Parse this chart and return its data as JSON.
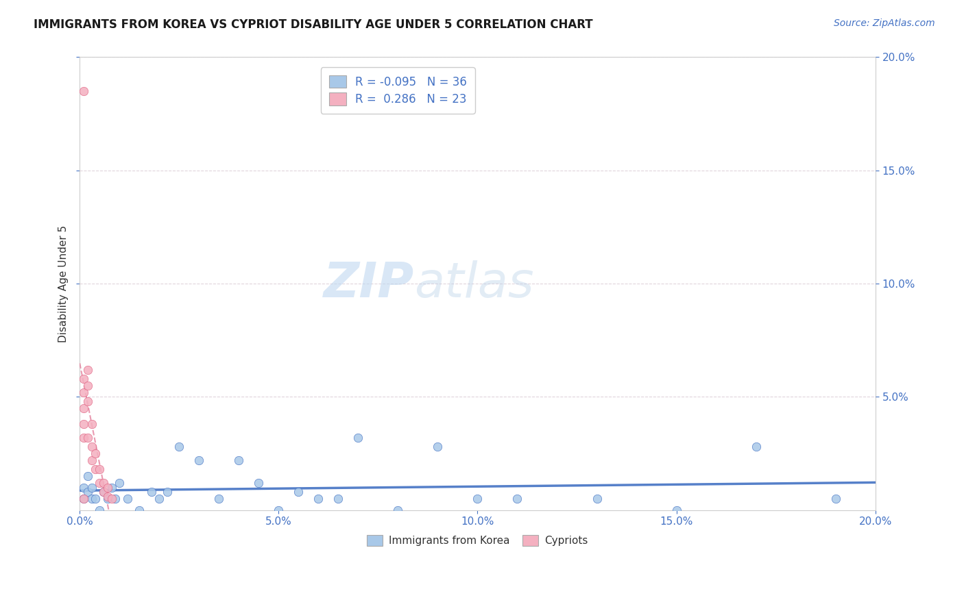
{
  "title": "IMMIGRANTS FROM KOREA VS CYPRIOT DISABILITY AGE UNDER 5 CORRELATION CHART",
  "source": "Source: ZipAtlas.com",
  "ylabel_label": "Disability Age Under 5",
  "legend_label1": "Immigrants from Korea",
  "legend_label2": "Cypriots",
  "r1": -0.095,
  "n1": 36,
  "r2": 0.286,
  "n2": 23,
  "color_korea": "#a8c8e8",
  "color_cypriot": "#f4b0c0",
  "color_korea_dark": "#4472c4",
  "color_cypriot_dark": "#e06080",
  "trendline_korea": "#4472c4",
  "trendline_cypriot": "#e07090",
  "xlim": [
    0.0,
    0.2
  ],
  "ylim": [
    0.0,
    0.2
  ],
  "xticks": [
    0.0,
    0.05,
    0.1,
    0.15,
    0.2
  ],
  "yticks": [
    0.05,
    0.1,
    0.15,
    0.2
  ],
  "grid_color": "#ddd0d8",
  "watermark_zip": "ZIP",
  "watermark_atlas": "atlas",
  "korea_x": [
    0.001,
    0.001,
    0.002,
    0.002,
    0.003,
    0.003,
    0.004,
    0.005,
    0.006,
    0.007,
    0.008,
    0.009,
    0.01,
    0.012,
    0.015,
    0.018,
    0.02,
    0.022,
    0.025,
    0.03,
    0.035,
    0.04,
    0.045,
    0.05,
    0.055,
    0.06,
    0.065,
    0.07,
    0.08,
    0.09,
    0.1,
    0.11,
    0.13,
    0.15,
    0.17,
    0.19
  ],
  "korea_y": [
    0.01,
    0.005,
    0.015,
    0.008,
    0.01,
    0.005,
    0.005,
    0.0,
    0.008,
    0.005,
    0.01,
    0.005,
    0.012,
    0.005,
    0.0,
    0.008,
    0.005,
    0.008,
    0.028,
    0.022,
    0.005,
    0.022,
    0.012,
    0.0,
    0.008,
    0.005,
    0.005,
    0.032,
    0.0,
    0.028,
    0.005,
    0.005,
    0.005,
    0.0,
    0.028,
    0.005
  ],
  "cypriot_x": [
    0.001,
    0.001,
    0.001,
    0.001,
    0.001,
    0.001,
    0.001,
    0.002,
    0.002,
    0.002,
    0.002,
    0.003,
    0.003,
    0.003,
    0.004,
    0.004,
    0.005,
    0.005,
    0.006,
    0.006,
    0.007,
    0.007,
    0.008
  ],
  "cypriot_y": [
    0.185,
    0.058,
    0.052,
    0.045,
    0.038,
    0.032,
    0.005,
    0.062,
    0.055,
    0.048,
    0.032,
    0.038,
    0.028,
    0.022,
    0.025,
    0.018,
    0.018,
    0.012,
    0.012,
    0.008,
    0.01,
    0.006,
    0.005
  ]
}
